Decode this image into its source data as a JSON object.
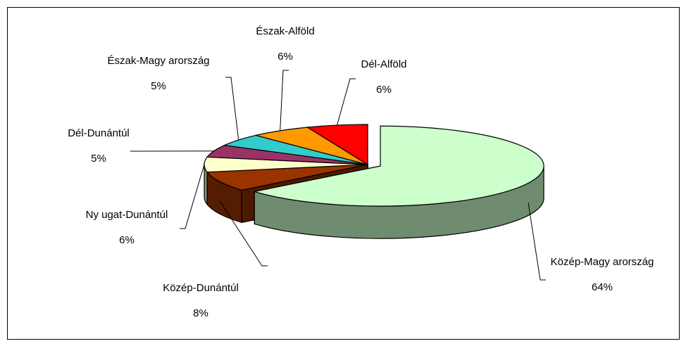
{
  "chart_data": {
    "type": "pie3d",
    "categories": [
      "Közép-Magy arország",
      "Közép-Dunántúl",
      "Ny ugat-Dunántúl",
      "Dél-Dunántúl",
      "Észak-Magy arország",
      "Észak-Alföld",
      "Dél-Alföld"
    ],
    "values": [
      64,
      8,
      6,
      5,
      5,
      6,
      6
    ],
    "value_labels": [
      "64%",
      "8%",
      "6%",
      "5%",
      "5%",
      "6%",
      "6%"
    ],
    "colors": [
      "#ccffcc",
      "#993300",
      "#ffffcc",
      "#993366",
      "#33cccc",
      "#ff9900",
      "#ff0000"
    ]
  }
}
